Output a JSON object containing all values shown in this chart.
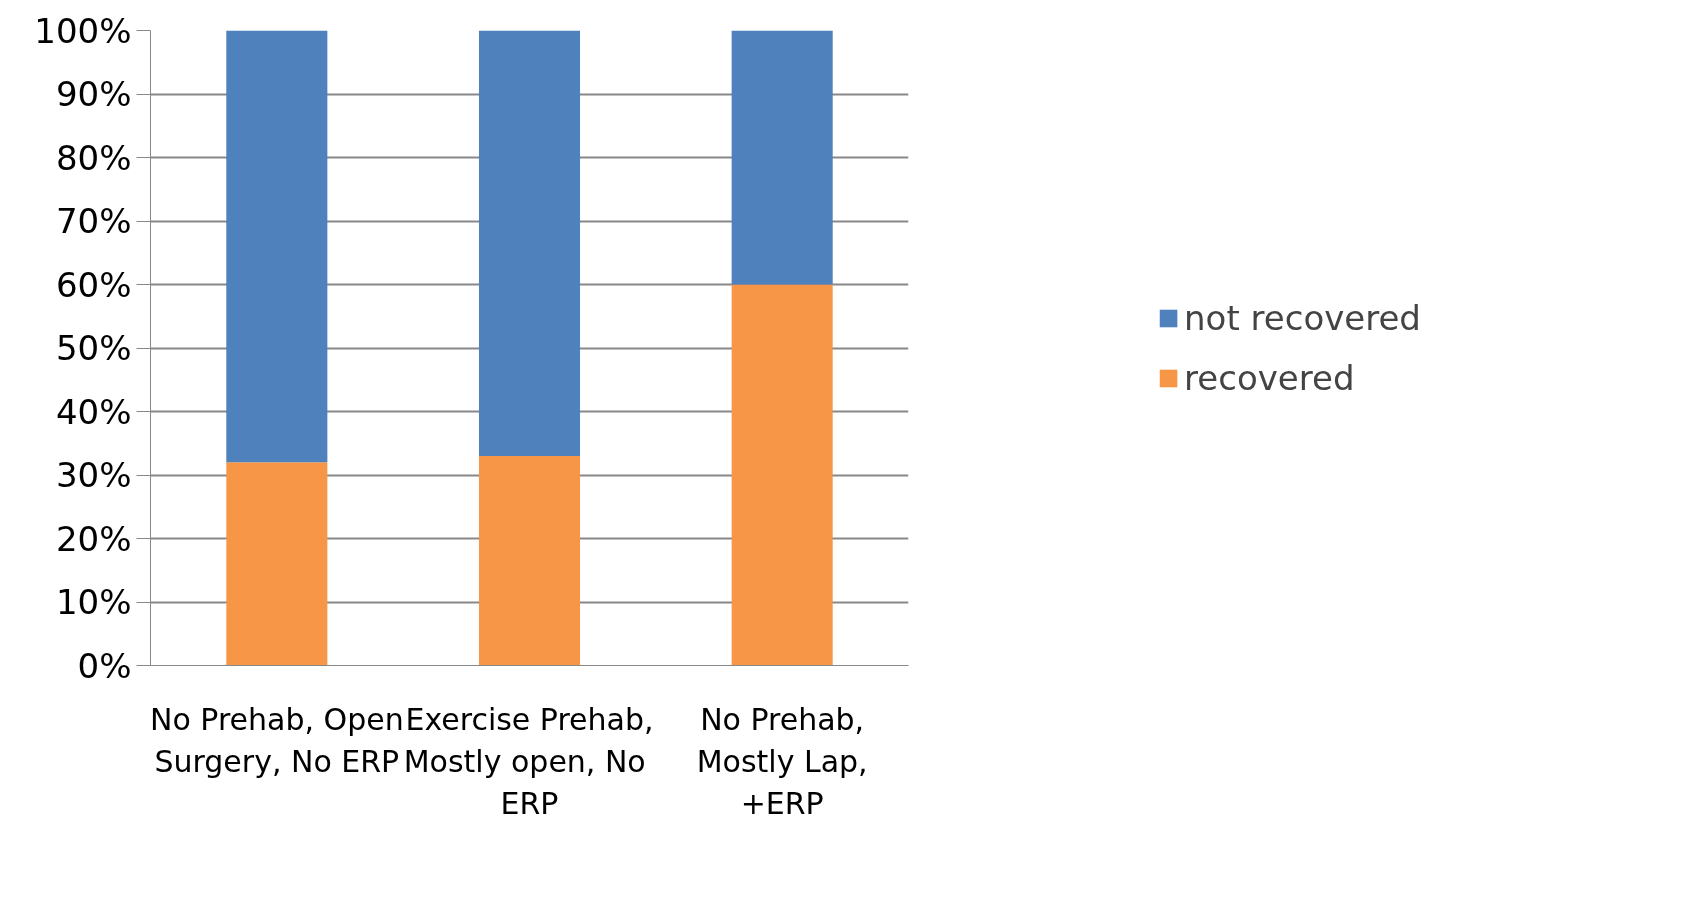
{
  "chart_data": {
    "type": "bar",
    "stacked": true,
    "categories": [
      "No Prehab, Open Surgery, No ERP",
      "Exercise Prehab, Mostly open,  No ERP",
      "No Prehab, Mostly Lap,  +ERP"
    ],
    "series": [
      {
        "name": "recovered",
        "color": "#f79646",
        "values": [
          32,
          33,
          60
        ]
      },
      {
        "name": "not recovered",
        "color": "#4f81bd",
        "values": [
          68,
          67,
          40
        ]
      }
    ],
    "ylim": [
      0,
      100
    ],
    "yticks": [
      {
        "value": 0,
        "label": "0%"
      },
      {
        "value": 10,
        "label": "10%"
      },
      {
        "value": 20,
        "label": "20%"
      },
      {
        "value": 30,
        "label": "30%"
      },
      {
        "value": 40,
        "label": "40%"
      },
      {
        "value": 50,
        "label": "50%"
      },
      {
        "value": 60,
        "label": "60%"
      },
      {
        "value": 70,
        "label": "70%"
      },
      {
        "value": 80,
        "label": "80%"
      },
      {
        "value": 90,
        "label": "90%"
      },
      {
        "value": 100,
        "label": "100%"
      }
    ],
    "grid": "y",
    "legend": "right"
  }
}
